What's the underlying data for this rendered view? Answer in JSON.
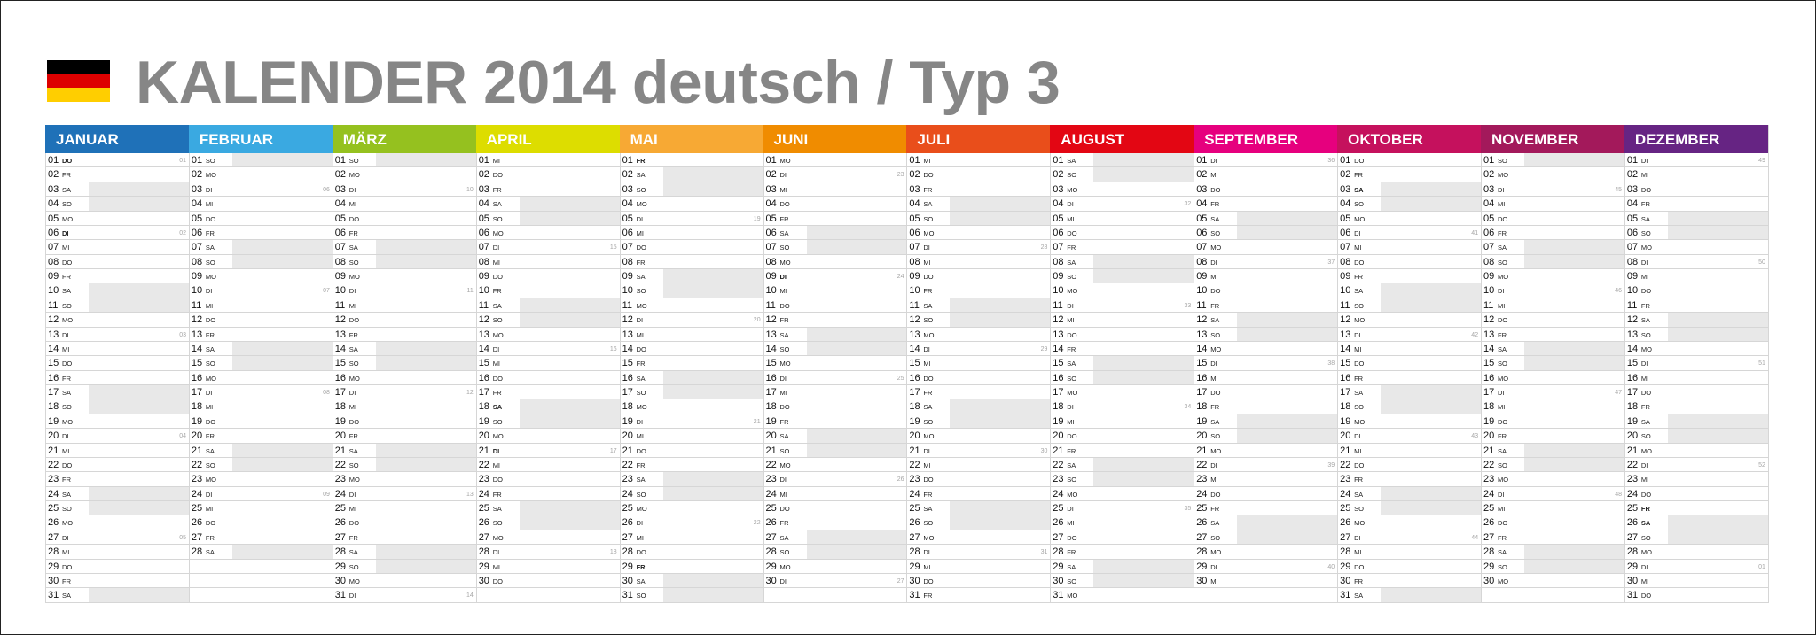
{
  "title": "KALENDER 2014 deutsch / Typ 3",
  "flag_colors": [
    "#000000",
    "#dd0000",
    "#ffce00"
  ],
  "months": [
    {
      "name": "JANUAR",
      "color": "#1f71b8",
      "days": 31,
      "start": 3,
      "kw": {
        "1": "01",
        "6": "02",
        "13": "03",
        "20": "04",
        "27": "05"
      },
      "bold": [
        1,
        6
      ]
    },
    {
      "name": "FEBRUAR",
      "color": "#3aa9e1",
      "days": 28,
      "start": 6,
      "kw": {
        "3": "06",
        "10": "07",
        "17": "08",
        "24": "09"
      },
      "bold": []
    },
    {
      "name": "MÄRZ",
      "color": "#95c11f",
      "days": 31,
      "start": 6,
      "kw": {
        "3": "10",
        "10": "11",
        "17": "12",
        "24": "13",
        "31": "14"
      },
      "bold": []
    },
    {
      "name": "APRIL",
      "color": "#dddd00",
      "days": 30,
      "start": 2,
      "kw": {
        "7": "15",
        "14": "16",
        "21": "17",
        "28": "18"
      },
      "bold": [
        18,
        21
      ]
    },
    {
      "name": "MAI",
      "color": "#f7a934",
      "days": 31,
      "start": 4,
      "kw": {
        "5": "19",
        "12": "20",
        "19": "21",
        "26": "22"
      },
      "bold": [
        1,
        29
      ]
    },
    {
      "name": "JUNI",
      "color": "#f08c00",
      "days": 30,
      "start": 0,
      "kw": {
        "2": "23",
        "9": "24",
        "16": "25",
        "23": "26",
        "30": "27"
      },
      "bold": [
        9
      ]
    },
    {
      "name": "JULI",
      "color": "#e94e1b",
      "days": 31,
      "start": 2,
      "kw": {
        "7": "28",
        "14": "29",
        "21": "30",
        "28": "31"
      },
      "bold": []
    },
    {
      "name": "AUGUST",
      "color": "#e30613",
      "days": 31,
      "start": 5,
      "kw": {
        "4": "32",
        "11": "33",
        "18": "34",
        "25": "35"
      },
      "bold": []
    },
    {
      "name": "SEPTEMBER",
      "color": "#e6007e",
      "days": 30,
      "start": 1,
      "kw": {
        "1": "36",
        "8": "37",
        "15": "38",
        "22": "39",
        "29": "40"
      },
      "bold": []
    },
    {
      "name": "OKTOBER",
      "color": "#c5115d",
      "days": 31,
      "start": 3,
      "kw": {
        "6": "41",
        "13": "42",
        "20": "43",
        "27": "44"
      },
      "bold": [
        3
      ]
    },
    {
      "name": "NOVEMBER",
      "color": "#a3195b",
      "days": 30,
      "start": 6,
      "kw": {
        "3": "45",
        "10": "46",
        "17": "47",
        "24": "48"
      },
      "bold": []
    },
    {
      "name": "DEZEMBER",
      "color": "#662483",
      "days": 31,
      "start": 1,
      "kw": {
        "1": "49",
        "8": "50",
        "15": "51",
        "22": "52",
        "29": "01"
      },
      "bold": [
        25,
        26
      ]
    }
  ],
  "weekday_abbr": [
    "MO",
    "DI",
    "MI",
    "DO",
    "FR",
    "SA",
    "SO"
  ]
}
